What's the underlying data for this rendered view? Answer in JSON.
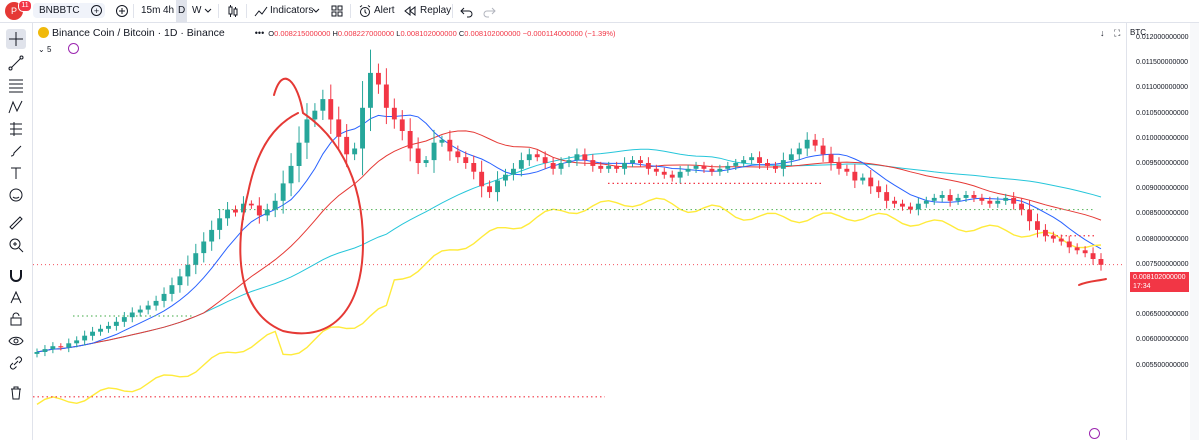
{
  "topbar": {
    "avatar_letter": "P",
    "notification_count": "11",
    "symbol": "BNBBTC",
    "intervals": [
      "15m",
      "4h",
      "D",
      "W"
    ],
    "active_interval": "D",
    "indicators_label": "Indicators",
    "alert_label": "Alert",
    "replay_label": "Replay"
  },
  "legend": {
    "title": "Binance Coin / Bitcoin · 1D · Binance",
    "more": "•••",
    "open_label": "O",
    "open": "0.008215000000",
    "high_label": "H",
    "high": "0.008227000000",
    "low_label": "L",
    "low": "0.008102000000",
    "close_label": "C",
    "close": "0.008102000000",
    "change": "−0.000114000000 (−1.39%)",
    "collapse_count": "5"
  },
  "axis": {
    "currency": "BTC",
    "labels": [
      "0.012000000000",
      "0.011500000000",
      "0.011000000000",
      "0.010500000000",
      "0.010000000000",
      "0.009500000000",
      "0.009000000000",
      "0.008500000000",
      "0.008000000000",
      "0.007500000000",
      "0.007000000000",
      "0.006500000000",
      "0.006000000000",
      "0.005500000000"
    ],
    "last_price": "0.008102000000",
    "countdown": "17:34"
  },
  "colors": {
    "up": "#26a69a",
    "down": "#f23645",
    "sma_short": "#2962ff",
    "sma_mid": "#e53935",
    "sma_long": "#26c6da",
    "yellow": "#ffeb3b",
    "annotation": "#e53935"
  },
  "chart_data": {
    "type": "candlestick",
    "symbol": "BNBBTC",
    "interval": "1D",
    "exchange": "Binance",
    "ylim": [
      0.0054,
      0.0122
    ],
    "last": {
      "open": 0.008215,
      "high": 0.008227,
      "low": 0.008102,
      "close": 0.008102,
      "change": -0.000114,
      "change_pct": -1.39
    },
    "close_series": [
      0.0066,
      0.00665,
      0.0067,
      0.00668,
      0.00675,
      0.0068,
      0.00688,
      0.00695,
      0.007,
      0.00705,
      0.00712,
      0.0072,
      0.00728,
      0.00733,
      0.0074,
      0.00748,
      0.0076,
      0.00775,
      0.0079,
      0.0081,
      0.0083,
      0.0085,
      0.0087,
      0.0089,
      0.00905,
      0.009,
      0.00915,
      0.00912,
      0.00895,
      0.00905,
      0.0092,
      0.0095,
      0.0098,
      0.0102,
      0.0106,
      0.01075,
      0.01095,
      0.0106,
      0.0103,
      0.01,
      0.0101,
      0.0108,
      0.0114,
      0.0112,
      0.0108,
      0.0106,
      0.0104,
      0.0101,
      0.00985,
      0.0099,
      0.0102,
      0.01025,
      0.01005,
      0.00995,
      0.00985,
      0.0097,
      0.00945,
      0.00935,
      0.00955,
      0.00965,
      0.00975,
      0.0099,
      0.01,
      0.00995,
      0.00985,
      0.00975,
      0.00985,
      0.0099,
      0.01,
      0.0099,
      0.0098,
      0.00975,
      0.0098,
      0.00975,
      0.00985,
      0.0099,
      0.00985,
      0.00975,
      0.0097,
      0.00965,
      0.0096,
      0.0097,
      0.00975,
      0.0098,
      0.00975,
      0.0097,
      0.00975,
      0.0098,
      0.00985,
      0.0099,
      0.00995,
      0.00985,
      0.0098,
      0.00975,
      0.0099,
      0.01,
      0.0101,
      0.01025,
      0.01015,
      0.01,
      0.00985,
      0.00975,
      0.0097,
      0.00955,
      0.0096,
      0.00945,
      0.00935,
      0.0092,
      0.00915,
      0.0091,
      0.00905,
      0.00915,
      0.0092,
      0.00925,
      0.0093,
      0.0092,
      0.00925,
      0.0093,
      0.00925,
      0.0092,
      0.00915,
      0.0092,
      0.00925,
      0.00915,
      0.00905,
      0.00885,
      0.0087,
      0.0086,
      0.00855,
      0.0085,
      0.0084,
      0.00835,
      0.0083,
      0.0082,
      0.0081
    ]
  }
}
